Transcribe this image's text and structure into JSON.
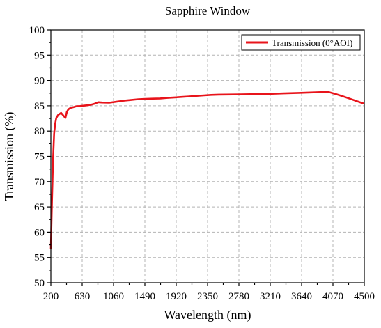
{
  "chart_data": {
    "type": "line",
    "title": "Sapphire Window",
    "xlabel": "Wavelength (nm)",
    "ylabel": "Transmission (%)",
    "xlim": [
      200,
      4500
    ],
    "ylim": [
      50,
      100
    ],
    "x_ticks": [
      200,
      630,
      1060,
      1490,
      1920,
      2350,
      2780,
      3210,
      3640,
      4070,
      4500
    ],
    "y_ticks": [
      50,
      55,
      60,
      65,
      70,
      75,
      80,
      85,
      90,
      95,
      100
    ],
    "grid": true,
    "legend_position": "top-right",
    "series": [
      {
        "name": "Transmission (0°AOI)",
        "color": "#e8141b",
        "x": [
          200,
          215,
          230,
          245,
          260,
          275,
          300,
          340,
          370,
          400,
          420,
          440,
          470,
          500,
          550,
          600,
          630,
          700,
          750,
          800,
          850,
          900,
          1000,
          1100,
          1200,
          1300,
          1400,
          1500,
          1600,
          1700,
          1800,
          1900,
          2000,
          2100,
          2200,
          2300,
          2400,
          2500,
          2600,
          2800,
          3000,
          3200,
          3400,
          3600,
          3800,
          3900,
          4000,
          4100,
          4200,
          4300,
          4400,
          4500
        ],
        "y": [
          56.7,
          66,
          74,
          79.5,
          81.5,
          82.6,
          83.2,
          83.6,
          83.1,
          82.6,
          83.8,
          84.3,
          84.6,
          84.7,
          84.9,
          84.95,
          85.0,
          85.1,
          85.2,
          85.4,
          85.7,
          85.65,
          85.6,
          85.8,
          86.0,
          86.15,
          86.3,
          86.35,
          86.4,
          86.45,
          86.55,
          86.65,
          86.75,
          86.85,
          86.95,
          87.05,
          87.15,
          87.2,
          87.22,
          87.25,
          87.3,
          87.35,
          87.45,
          87.55,
          87.65,
          87.7,
          87.75,
          87.35,
          86.9,
          86.4,
          85.9,
          85.4
        ]
      }
    ]
  }
}
